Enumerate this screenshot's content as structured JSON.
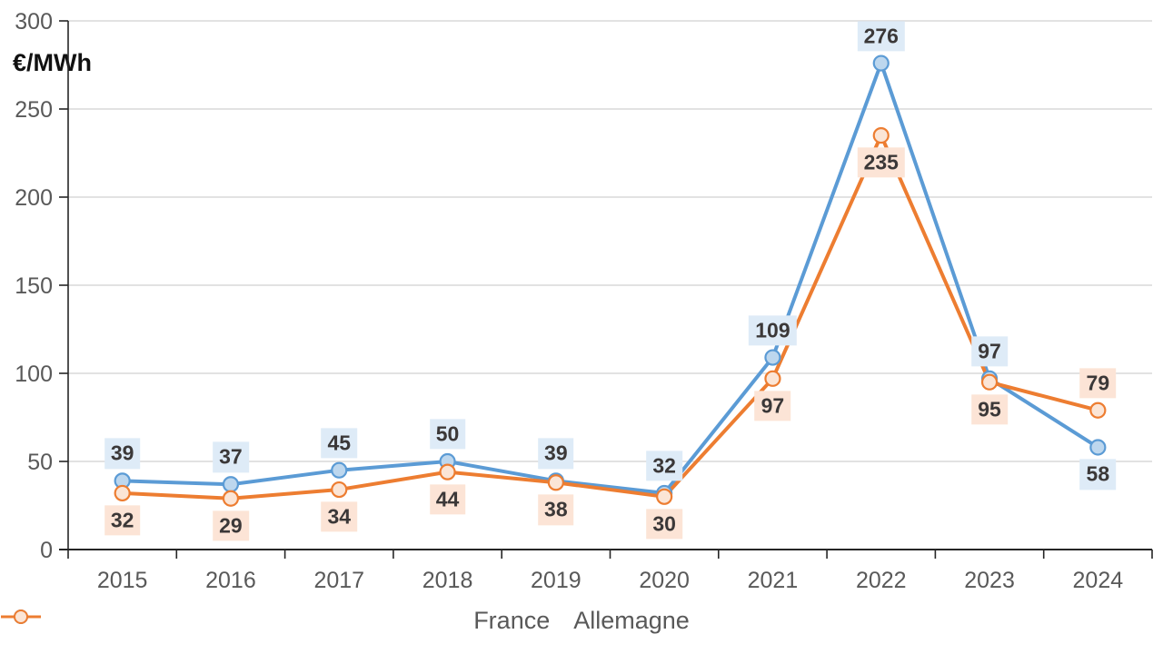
{
  "chart_data": {
    "type": "line",
    "title": "",
    "ylabel": "€/MWh",
    "xlabel": "",
    "categories": [
      "2015",
      "2016",
      "2017",
      "2018",
      "2019",
      "2020",
      "2021",
      "2022",
      "2023",
      "2024"
    ],
    "series": [
      {
        "name": "France",
        "color": "#5B9BD5",
        "marker_fill": "#BDD7EE",
        "label_bg": "#DEEBF7",
        "values": [
          39,
          37,
          45,
          50,
          39,
          32,
          109,
          276,
          97,
          58
        ],
        "label_positions": [
          "above",
          "above",
          "above",
          "above",
          "above",
          "above",
          "above",
          "above",
          "above",
          "below"
        ]
      },
      {
        "name": "Allemagne",
        "color": "#ED7D31",
        "marker_fill": "#FBE5D6",
        "label_bg": "#FCE4D6",
        "values": [
          32,
          29,
          34,
          44,
          38,
          30,
          97,
          235,
          95,
          79
        ],
        "label_positions": [
          "below",
          "below",
          "below",
          "below",
          "below",
          "below",
          "below",
          "below",
          "below",
          "above"
        ]
      }
    ],
    "y_axis": {
      "min": 0,
      "max": 300,
      "step": 50,
      "tick_labels": [
        "0",
        "50",
        "100",
        "150",
        "200",
        "250",
        "300"
      ]
    },
    "grid": true,
    "legend_position": "bottom",
    "colors": {
      "gridline": "#D9D9D9",
      "axis_line": "#262626",
      "axis_text": "#595959",
      "label_text": "#3B3838",
      "background": "#FFFFFF"
    }
  }
}
